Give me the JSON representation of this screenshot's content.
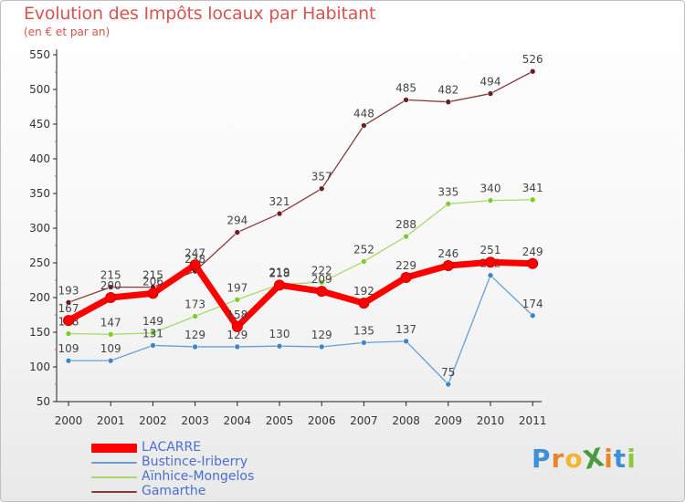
{
  "title": "Evolution des Impôts locaux par Habitant",
  "subtitle": "(en € et par an)",
  "logo": {
    "text": "ProXiti",
    "letters": [
      "P",
      "r",
      "o",
      "X",
      "i",
      "t",
      "i"
    ],
    "colors": [
      "#3f8fd6",
      "#e8852b",
      "#f2b632",
      "#4b9b3c",
      "#e8852b",
      "#3f8fd6",
      "#8dc63f"
    ]
  },
  "chart_data": {
    "type": "line",
    "title": "Evolution des Impôts locaux par Habitant",
    "subtitle": "(en € et par an)",
    "xlabel": "",
    "ylabel": "",
    "ylim": [
      50,
      550
    ],
    "yticks": [
      50,
      100,
      150,
      200,
      250,
      300,
      350,
      400,
      450,
      500,
      550
    ],
    "grid": false,
    "legend_position": "bottom-left",
    "categories": [
      "2000",
      "2001",
      "2002",
      "2003",
      "2004",
      "2005",
      "2006",
      "2007",
      "2008",
      "2009",
      "2010",
      "2011"
    ],
    "series": [
      {
        "name": "Gamarthe",
        "color": "#8b3a3a",
        "point_color": "#6b1f24",
        "weight": "thin",
        "values": [
          193,
          215,
          215,
          238,
          294,
          321,
          357,
          448,
          485,
          482,
          494,
          526
        ]
      },
      {
        "name": "Aïnhice-Mongelos",
        "color": "#a6d96a",
        "point_color": "#7ccc2f",
        "weight": "thin",
        "values": [
          148,
          147,
          149,
          173,
          197,
          219,
          222,
          252,
          288,
          335,
          340,
          341
        ]
      },
      {
        "name": "Bustince-Iriberry",
        "color": "#6a9ed0",
        "point_color": "#3d86c6",
        "weight": "thin",
        "values": [
          109,
          109,
          131,
          129,
          129,
          130,
          129,
          135,
          137,
          75,
          232,
          174
        ]
      },
      {
        "name": "LACARRE",
        "color": "#ff0000",
        "point_color": "#ff0000",
        "weight": "thick",
        "values": [
          167,
          200,
          206,
          247,
          158,
          218,
          209,
          192,
          229,
          246,
          251,
          249
        ]
      }
    ],
    "legend_order": [
      "LACARRE",
      "Bustince-Iriberry",
      "Aïnhice-Mongelos",
      "Gamarthe"
    ]
  }
}
